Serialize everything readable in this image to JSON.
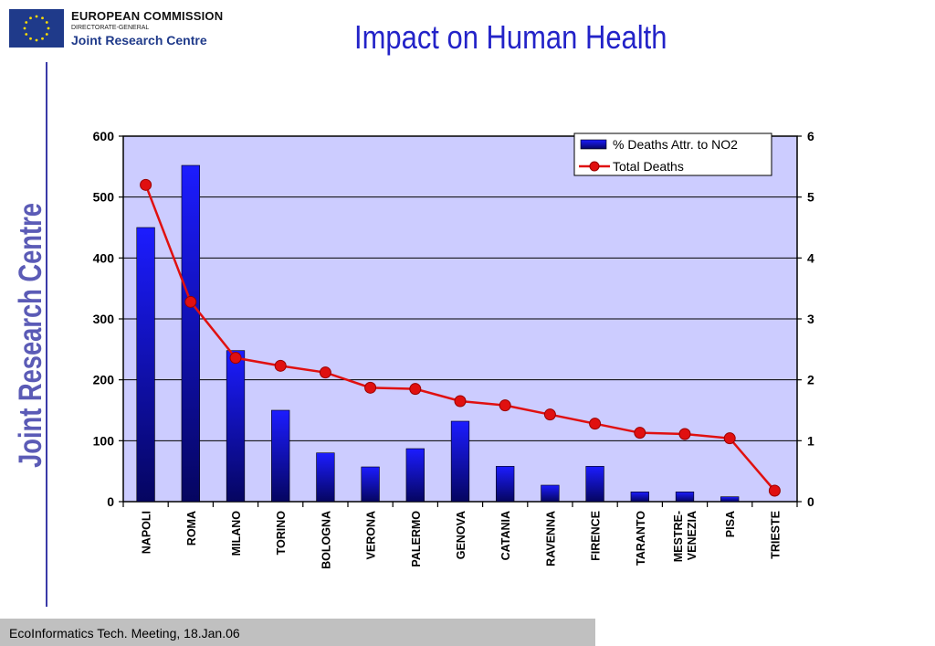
{
  "header": {
    "org_line1": "EUROPEAN COMMISSION",
    "org_line2": "DIRECTORATE-GENERAL",
    "org_line3": "Joint Research Centre",
    "vertical_label": "Joint Research Centre"
  },
  "footer": {
    "text": "EcoInformatics Tech. Meeting, 18.Jan.06"
  },
  "colors": {
    "bar": "#0a0ad0",
    "line": "#e01010",
    "plot_bg": "#ccccff",
    "title": "#2323c8"
  },
  "chart_data": {
    "type": "bar",
    "title": "Impact on Human Health",
    "categories": [
      "NAPOLI",
      "ROMA",
      "MILANO",
      "TORINO",
      "BOLOGNA",
      "VERONA",
      "PALERMO",
      "GENOVA",
      "CATANIA",
      "RAVENNA",
      "FIRENCE",
      "TARANTO",
      "MESTRE-VENEZIA",
      "PISA",
      "TRIESTE"
    ],
    "ylim": [
      0,
      600
    ],
    "y_ticks": [
      "0",
      "100",
      "200",
      "300",
      "400",
      "500",
      "600"
    ],
    "y2lim": [
      0,
      6
    ],
    "y2_ticks": [
      "0",
      "1",
      "2",
      "3",
      "4",
      "5",
      "6"
    ],
    "grid": true,
    "legend_position": "top-right",
    "series": [
      {
        "name": "%  Deaths Attr. to NO2",
        "type": "bar",
        "axis": "left",
        "values": [
          450,
          552,
          248,
          150,
          80,
          57,
          87,
          132,
          58,
          27,
          58,
          16,
          16,
          8,
          0
        ]
      },
      {
        "name": "Total Deaths",
        "type": "line",
        "axis": "right",
        "values": [
          5.2,
          3.28,
          2.36,
          2.23,
          2.12,
          1.87,
          1.85,
          1.65,
          1.58,
          1.43,
          1.28,
          1.13,
          1.11,
          1.04,
          0.18
        ]
      }
    ]
  }
}
